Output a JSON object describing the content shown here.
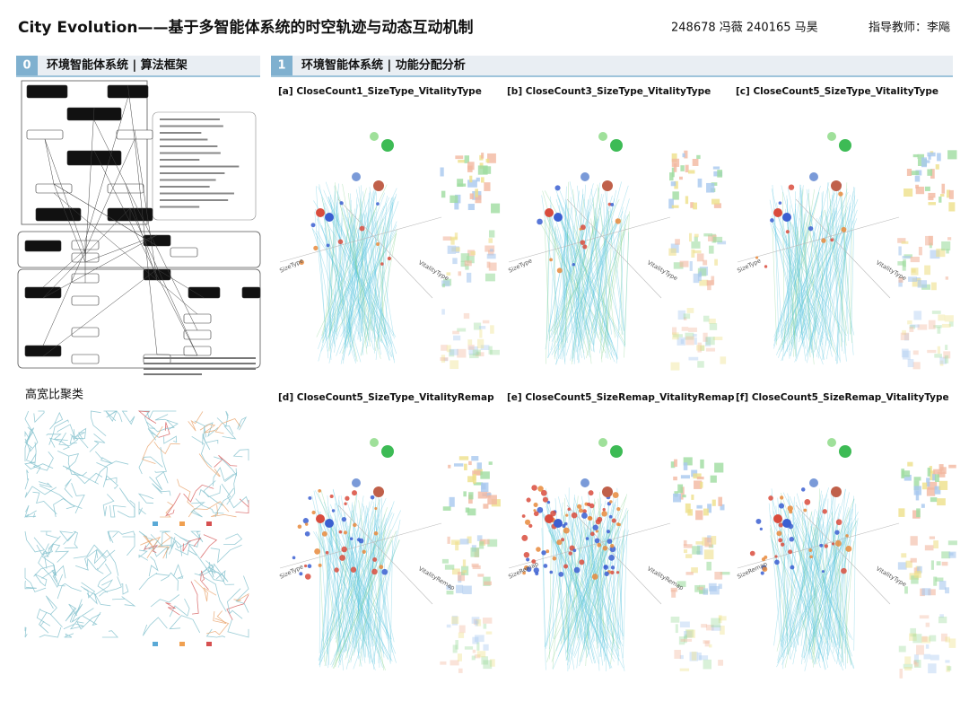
{
  "header": {
    "title": "City Evolution——基于多智能体系统的时空轨迹与动态互动机制",
    "authors": "248678 冯薇   240165 马昊",
    "advisor": "指导教师：李飚"
  },
  "sections": [
    {
      "number": "0",
      "title": "环境智能体系统 | 算法框架"
    },
    {
      "number": "1",
      "title": "环境智能体系统 | 功能分配分析"
    }
  ],
  "panels": [
    {
      "label": "[a] CloseCount1_SizeType_VitalityType",
      "x_axis": "SizeType",
      "y_axis": "VitalityType"
    },
    {
      "label": "[b] CloseCount3_SizeType_VitalityType",
      "x_axis": "SizeType",
      "y_axis": "VitalityType"
    },
    {
      "label": "[c] CloseCount5_SizeType_VitalityType",
      "x_axis": "SizeType",
      "y_axis": "VitalityType"
    },
    {
      "label": "[d] CloseCount5_SizeType_VitalityRemap",
      "x_axis": "SizeType",
      "y_axis": "VitalityRemap"
    },
    {
      "label": "[e] CloseCount5_SizeRemap_VitalityRemap",
      "x_axis": "SizeRemap",
      "y_axis": "VitalityRemap"
    },
    {
      "label": "[f] CloseCount5_SizeRemap_VitalityType",
      "x_axis": "SizeRemap",
      "y_axis": "VitalityType"
    }
  ],
  "clustering": {
    "title": "高宽比聚类"
  }
}
